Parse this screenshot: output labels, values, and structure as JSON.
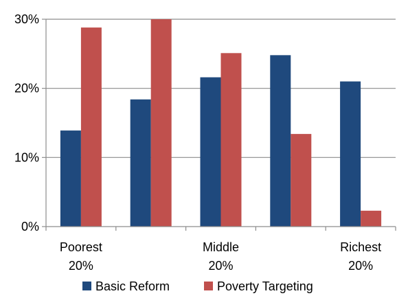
{
  "chart_data": {
    "type": "bar",
    "categories": [
      [
        "Poorest",
        "20%"
      ],
      [
        "",
        ""
      ],
      [
        "Middle",
        "20%"
      ],
      [
        "",
        ""
      ],
      [
        "Richest",
        "20%"
      ]
    ],
    "series": [
      {
        "name": "Basic Reform",
        "color": "#1F497D",
        "values": [
          13.9,
          18.4,
          21.6,
          24.8,
          21.0
        ]
      },
      {
        "name": "Poverty Targeting",
        "color": "#C0504D",
        "values": [
          28.8,
          30.0,
          25.1,
          13.4,
          2.3
        ]
      }
    ],
    "title": "",
    "xlabel": "",
    "ylabel": "",
    "ylim": [
      0,
      30
    ],
    "yticks": [
      0,
      10,
      20,
      30
    ],
    "ytick_labels": [
      "0%",
      "10%",
      "20%",
      "30%"
    ],
    "grid": true,
    "legend_position": "bottom"
  }
}
